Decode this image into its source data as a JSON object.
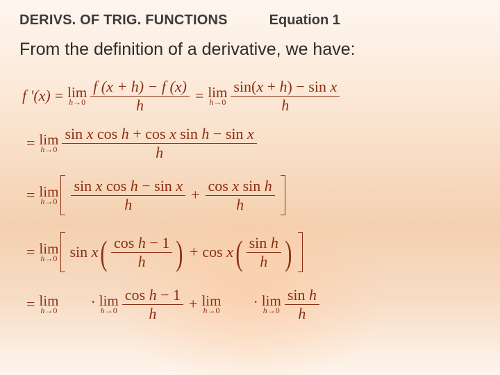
{
  "header": {
    "section_title": "DERIVS. OF TRIG. FUNCTIONS",
    "equation_label": "Equation 1"
  },
  "intro_text": "From the definition of a derivative, we have:",
  "colors": {
    "math_text": "#8c2f13",
    "body_text": "#2c2c2c",
    "heading_text": "#3a3a3a",
    "bg_top": "#fef6ef",
    "bg_mid": "#f4d0b0",
    "bg_accent": "#f8c9a4"
  },
  "typography": {
    "heading_font": "Arial",
    "heading_size_pt": 15,
    "body_font": "Arial",
    "body_size_pt": 19,
    "math_font": "Times New Roman",
    "math_size_pt": 16
  },
  "math": {
    "lhs": "f '(x)",
    "eq": "=",
    "dot": "·",
    "plus": "+",
    "minus": "−",
    "lim_label": "lim",
    "lim_sub": "h→0",
    "line1": {
      "frac1_num": "f (x + h) − f (x)",
      "frac1_den": "h",
      "frac2_num": "sin(x + h) − sin x",
      "frac2_den": "h"
    },
    "line2": {
      "frac_num": "sin x cos h + cos x sin h − sin x",
      "frac_den": "h"
    },
    "line3": {
      "fracA_num": "sin x cos h − sin x",
      "fracA_den": "h",
      "fracB_num": "cos x sin h",
      "fracB_den": "h"
    },
    "line4": {
      "leadA": "sin x",
      "fracA_num": "cos h − 1",
      "fracA_den": "h",
      "leadB": "cos x",
      "fracB_num": "sin h",
      "fracB_den": "h"
    },
    "line5": {
      "fracA_num": "cos h − 1",
      "fracA_den": "h",
      "fracB_num": "sin h",
      "fracB_den": "h"
    }
  }
}
